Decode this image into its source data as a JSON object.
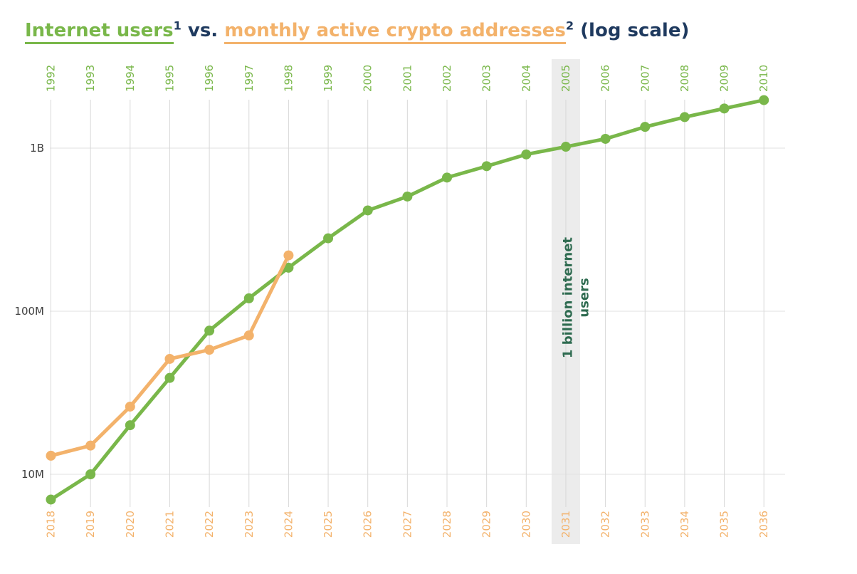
{
  "title": {
    "internet_users": "Internet users",
    "internet_users_sup": "1",
    "vs": " vs. ",
    "crypto": "monthly active crypto addresses",
    "crypto_sup": "2",
    "log_scale": " (log scale)"
  },
  "colors": {
    "green": "#79b74a",
    "orange": "#f3b26b",
    "navy": "#1f3a5f",
    "annotation_green": "#2e6b50",
    "grid_vertical": "#d8d8d8",
    "grid_horizontal": "#e2e2e2",
    "highlight_band": "#ececec",
    "y_label": "#3f3f3f"
  },
  "chart_data": {
    "type": "line",
    "title": "Internet users vs. monthly active crypto addresses (log scale)",
    "log_scale": true,
    "grid": true,
    "legend_position": "none",
    "y_axis_range": [
      7000000,
      2200000000
    ],
    "y_ticks": [
      {
        "label": "10M",
        "value": 10000000
      },
      {
        "label": "100M",
        "value": 100000000
      },
      {
        "label": "1B",
        "value": 1000000000
      }
    ],
    "top_axis_years": [
      1992,
      1993,
      1994,
      1995,
      1996,
      1997,
      1998,
      1999,
      2000,
      2001,
      2002,
      2003,
      2004,
      2005,
      2006,
      2007,
      2008,
      2009,
      2010
    ],
    "bottom_axis_years": [
      2018,
      2019,
      2020,
      2021,
      2022,
      2023,
      2024,
      2025,
      2026,
      2027,
      2028,
      2029,
      2030,
      2031,
      2032,
      2033,
      2034,
      2035,
      2036
    ],
    "highlight": {
      "column_index": 13,
      "top_year": 2005,
      "bottom_year": 2031,
      "annotation": "1 billion internet users"
    },
    "series": [
      {
        "name": "Internet users",
        "axis": "top",
        "color_key": "green",
        "points": [
          {
            "year": 1992,
            "value": 7000000
          },
          {
            "year": 1993,
            "value": 10000000
          },
          {
            "year": 1994,
            "value": 20000000
          },
          {
            "year": 1995,
            "value": 39000000
          },
          {
            "year": 1996,
            "value": 76000000
          },
          {
            "year": 1997,
            "value": 120000000
          },
          {
            "year": 1998,
            "value": 185000000
          },
          {
            "year": 1999,
            "value": 280000000
          },
          {
            "year": 2000,
            "value": 415000000
          },
          {
            "year": 2001,
            "value": 505000000
          },
          {
            "year": 2002,
            "value": 660000000
          },
          {
            "year": 2003,
            "value": 775000000
          },
          {
            "year": 2004,
            "value": 915000000
          },
          {
            "year": 2005,
            "value": 1020000000
          },
          {
            "year": 2006,
            "value": 1140000000
          },
          {
            "year": 2007,
            "value": 1350000000
          },
          {
            "year": 2008,
            "value": 1550000000
          },
          {
            "year": 2009,
            "value": 1750000000
          },
          {
            "year": 2010,
            "value": 1970000000
          }
        ]
      },
      {
        "name": "Monthly active crypto addresses",
        "axis": "bottom",
        "color_key": "orange",
        "points": [
          {
            "year": 2018,
            "value": 13000000
          },
          {
            "year": 2019,
            "value": 15000000
          },
          {
            "year": 2020,
            "value": 26000000
          },
          {
            "year": 2021,
            "value": 51000000
          },
          {
            "year": 2022,
            "value": 58000000
          },
          {
            "year": 2023,
            "value": 71000000
          },
          {
            "year": 2024,
            "value": 220000000
          }
        ]
      }
    ]
  }
}
